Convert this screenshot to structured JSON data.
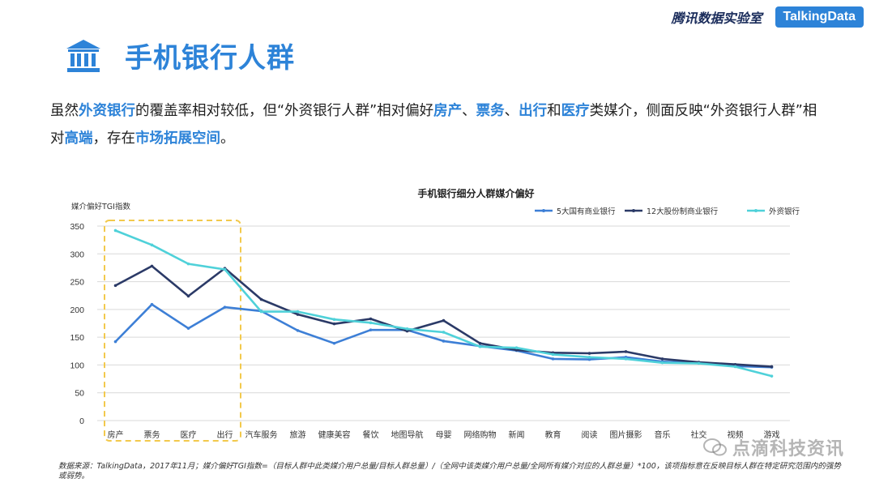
{
  "header": {
    "lab_name": "腾讯数据实验室",
    "brand": "TalkingData"
  },
  "page": {
    "title": "手机银行人群",
    "summary": [
      {
        "text": "虽然",
        "hl": false
      },
      {
        "text": "外资银行",
        "hl": true
      },
      {
        "text": "的覆盖率相对较低，但“外资银行人群”相对偏好",
        "hl": false
      },
      {
        "text": "房产",
        "hl": true
      },
      {
        "text": "、",
        "hl": false
      },
      {
        "text": "票务",
        "hl": true
      },
      {
        "text": "、",
        "hl": false
      },
      {
        "text": "出行",
        "hl": true
      },
      {
        "text": "和",
        "hl": false
      },
      {
        "text": "医疗",
        "hl": true
      },
      {
        "text": "类媒介，侧面反映“外资银行人群”相对",
        "hl": false
      },
      {
        "text": "高端",
        "hl": true
      },
      {
        "text": "，存在",
        "hl": false
      },
      {
        "text": "市场拓展空间",
        "hl": true
      },
      {
        "text": "。",
        "hl": false
      }
    ]
  },
  "chart_data": {
    "type": "line",
    "title": "手机银行细分人群媒介偏好",
    "ylabel": "媒介偏好TGI指数",
    "xlabel": "",
    "ylim": [
      0,
      350
    ],
    "yticks": [
      0,
      50,
      100,
      150,
      200,
      250,
      300,
      350
    ],
    "grid": true,
    "legend_position": "top-right",
    "highlight_box_categories": [
      "房产",
      "票务",
      "医疗",
      "出行"
    ],
    "categories": [
      "房产",
      "票务",
      "医疗",
      "出行",
      "汽车服务",
      "旅游",
      "健康美容",
      "餐饮",
      "地图导航",
      "母婴",
      "网络购物",
      "新闻",
      "教育",
      "阅读",
      "图片摄影",
      "音乐",
      "社交",
      "视频",
      "游戏"
    ],
    "series": [
      {
        "name": "5大国有商业银行",
        "color": "#3d7fd6",
        "values": [
          142,
          209,
          166,
          204,
          197,
          162,
          139,
          163,
          163,
          143,
          134,
          126,
          111,
          110,
          114,
          106,
          104,
          98,
          96
        ]
      },
      {
        "name": "12大股份制商业银行",
        "color": "#2b3a67",
        "values": [
          243,
          278,
          224,
          274,
          218,
          191,
          174,
          183,
          161,
          180,
          139,
          127,
          122,
          121,
          124,
          111,
          105,
          101,
          97
        ]
      },
      {
        "name": "外资银行",
        "color": "#4fd1d9",
        "values": [
          342,
          316,
          282,
          272,
          196,
          196,
          182,
          176,
          165,
          159,
          133,
          131,
          119,
          114,
          111,
          104,
          103,
          97,
          80
        ]
      }
    ]
  },
  "footer": {
    "source_note": "数据来源：TalkingData，2017年11月；媒介偏好TGI指数=（目标人群中此类媒介用户总量/目标人群总量）/（全网中该类媒介用户总量/全网所有媒介对应的人群总量）*100，该项指标意在反映目标人群在特定研究范围内的强势或弱势。"
  },
  "watermark": {
    "text": "点滴科技资讯"
  }
}
